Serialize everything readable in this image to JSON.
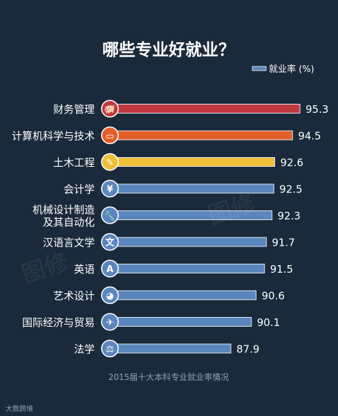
{
  "chart_data": {
    "type": "bar",
    "title": "哪些专业好就业？",
    "legend": "就业率 (%)",
    "categories": [
      "财务管理",
      "计算机科学与技术",
      "土木工程",
      "会计学",
      "机械设计制造\n及其自动化",
      "汉语言文学",
      "英语",
      "艺术设计",
      "国际经济与贸易",
      "法学"
    ],
    "values": [
      95.3,
      94.5,
      92.6,
      92.5,
      92.3,
      91.7,
      91.5,
      90.6,
      90.1,
      87.9
    ],
    "icons": [
      "piggy-bank-icon",
      "monitor-icon",
      "brush-icon",
      "yen-icon",
      "wrench-icon",
      "wen-character-icon",
      "letter-a-icon",
      "palette-icon",
      "airplane-icon",
      "scale-icon"
    ],
    "colors": [
      "#c0393f",
      "#e4602a",
      "#efbf3a",
      "#5b86bd",
      "#5b86bd",
      "#5b86bd",
      "#5b86bd",
      "#5b86bd",
      "#5b86bd",
      "#5b86bd"
    ],
    "caption": "2015届十大本科专业就业率情况"
  },
  "watermark": [
    "图修",
    "图修"
  ],
  "footer": "大数跨境"
}
